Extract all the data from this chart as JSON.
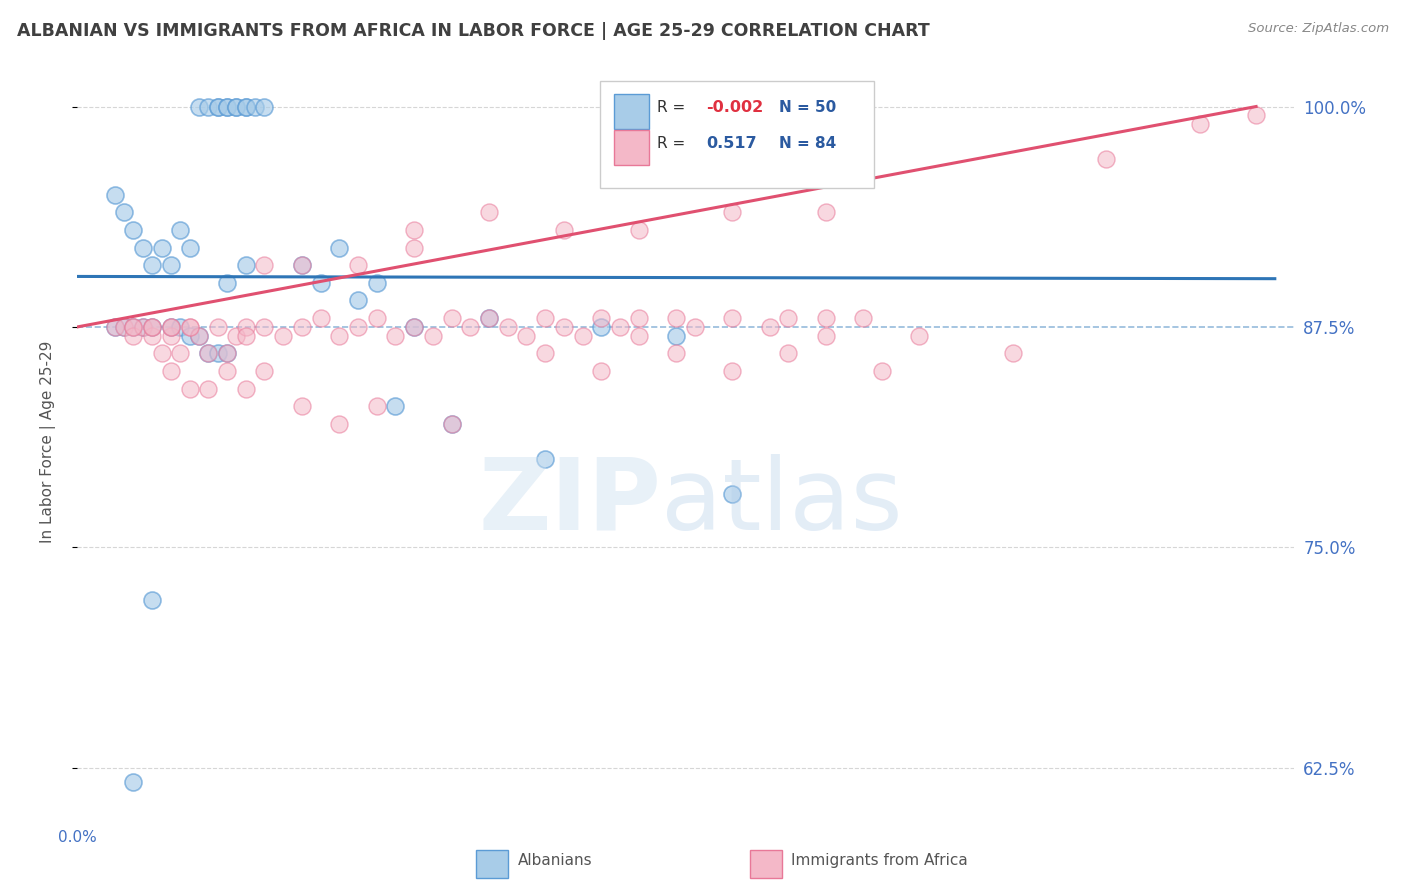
{
  "title": "ALBANIAN VS IMMIGRANTS FROM AFRICA IN LABOR FORCE | AGE 25-29 CORRELATION CHART",
  "source": "Source: ZipAtlas.com",
  "ylabel": "In Labor Force | Age 25-29",
  "xlim": [
    0.0,
    0.65
  ],
  "ylim": [
    0.595,
    1.025
  ],
  "yticks": [
    0.625,
    0.75,
    0.875,
    1.0
  ],
  "ytick_labels": [
    "62.5%",
    "75.0%",
    "87.5%",
    "100.0%"
  ],
  "xtick_positions": [
    0.0,
    0.1,
    0.2,
    0.3,
    0.4,
    0.5,
    0.6
  ],
  "color_albanian_fill": "#a8cce8",
  "color_albanian_edge": "#5b9bd5",
  "color_africa_fill": "#f4b8c8",
  "color_africa_edge": "#e87898",
  "color_line_albanian": "#2e75b6",
  "color_line_africa": "#e05070",
  "color_grid_grey": "#bbbbbb",
  "color_grid_blue": "#8ab4d8",
  "color_ytick_labels": "#4472c4",
  "color_xtick_labels": "#4472c4",
  "title_color": "#404040",
  "source_color": "#888888",
  "albanian_x": [
    0.065,
    0.07,
    0.075,
    0.075,
    0.08,
    0.08,
    0.085,
    0.085,
    0.09,
    0.09,
    0.095,
    0.1,
    0.02,
    0.025,
    0.03,
    0.035,
    0.04,
    0.045,
    0.05,
    0.055,
    0.06,
    0.12,
    0.13,
    0.14,
    0.08,
    0.09,
    0.15,
    0.16,
    0.18,
    0.22,
    0.28,
    0.32,
    0.02,
    0.025,
    0.03,
    0.035,
    0.04,
    0.05,
    0.055,
    0.06,
    0.065,
    0.07,
    0.075,
    0.08,
    0.17,
    0.2,
    0.25,
    0.35,
    0.04,
    0.03
  ],
  "albanian_y": [
    1.0,
    1.0,
    1.0,
    1.0,
    1.0,
    1.0,
    1.0,
    1.0,
    1.0,
    1.0,
    1.0,
    1.0,
    0.95,
    0.94,
    0.93,
    0.92,
    0.91,
    0.92,
    0.91,
    0.93,
    0.92,
    0.91,
    0.9,
    0.92,
    0.9,
    0.91,
    0.89,
    0.9,
    0.875,
    0.88,
    0.875,
    0.87,
    0.875,
    0.875,
    0.875,
    0.875,
    0.875,
    0.875,
    0.875,
    0.87,
    0.87,
    0.86,
    0.86,
    0.86,
    0.83,
    0.82,
    0.8,
    0.78,
    0.72,
    0.617
  ],
  "africa_x": [
    0.02,
    0.025,
    0.03,
    0.03,
    0.035,
    0.04,
    0.04,
    0.045,
    0.05,
    0.05,
    0.055,
    0.06,
    0.065,
    0.07,
    0.075,
    0.08,
    0.085,
    0.09,
    0.09,
    0.1,
    0.11,
    0.12,
    0.13,
    0.14,
    0.15,
    0.16,
    0.17,
    0.18,
    0.19,
    0.2,
    0.21,
    0.22,
    0.23,
    0.24,
    0.25,
    0.26,
    0.27,
    0.28,
    0.29,
    0.3,
    0.32,
    0.33,
    0.35,
    0.37,
    0.38,
    0.4,
    0.42,
    0.55,
    0.6,
    0.63,
    0.18,
    0.22,
    0.26,
    0.3,
    0.35,
    0.4,
    0.1,
    0.12,
    0.15,
    0.18,
    0.05,
    0.06,
    0.07,
    0.08,
    0.09,
    0.1,
    0.12,
    0.14,
    0.16,
    0.2,
    0.25,
    0.28,
    0.3,
    0.32,
    0.35,
    0.38,
    0.4,
    0.43,
    0.45,
    0.5,
    0.03,
    0.04,
    0.05,
    0.06
  ],
  "africa_y": [
    0.875,
    0.875,
    0.875,
    0.87,
    0.875,
    0.87,
    0.875,
    0.86,
    0.87,
    0.875,
    0.86,
    0.875,
    0.87,
    0.86,
    0.875,
    0.86,
    0.87,
    0.875,
    0.87,
    0.875,
    0.87,
    0.875,
    0.88,
    0.87,
    0.875,
    0.88,
    0.87,
    0.875,
    0.87,
    0.88,
    0.875,
    0.88,
    0.875,
    0.87,
    0.88,
    0.875,
    0.87,
    0.88,
    0.875,
    0.88,
    0.88,
    0.875,
    0.88,
    0.875,
    0.88,
    0.88,
    0.88,
    0.97,
    0.99,
    0.995,
    0.93,
    0.94,
    0.93,
    0.93,
    0.94,
    0.94,
    0.91,
    0.91,
    0.91,
    0.92,
    0.85,
    0.84,
    0.84,
    0.85,
    0.84,
    0.85,
    0.83,
    0.82,
    0.83,
    0.82,
    0.86,
    0.85,
    0.87,
    0.86,
    0.85,
    0.86,
    0.87,
    0.85,
    0.87,
    0.86,
    0.875,
    0.875,
    0.875,
    0.875
  ]
}
